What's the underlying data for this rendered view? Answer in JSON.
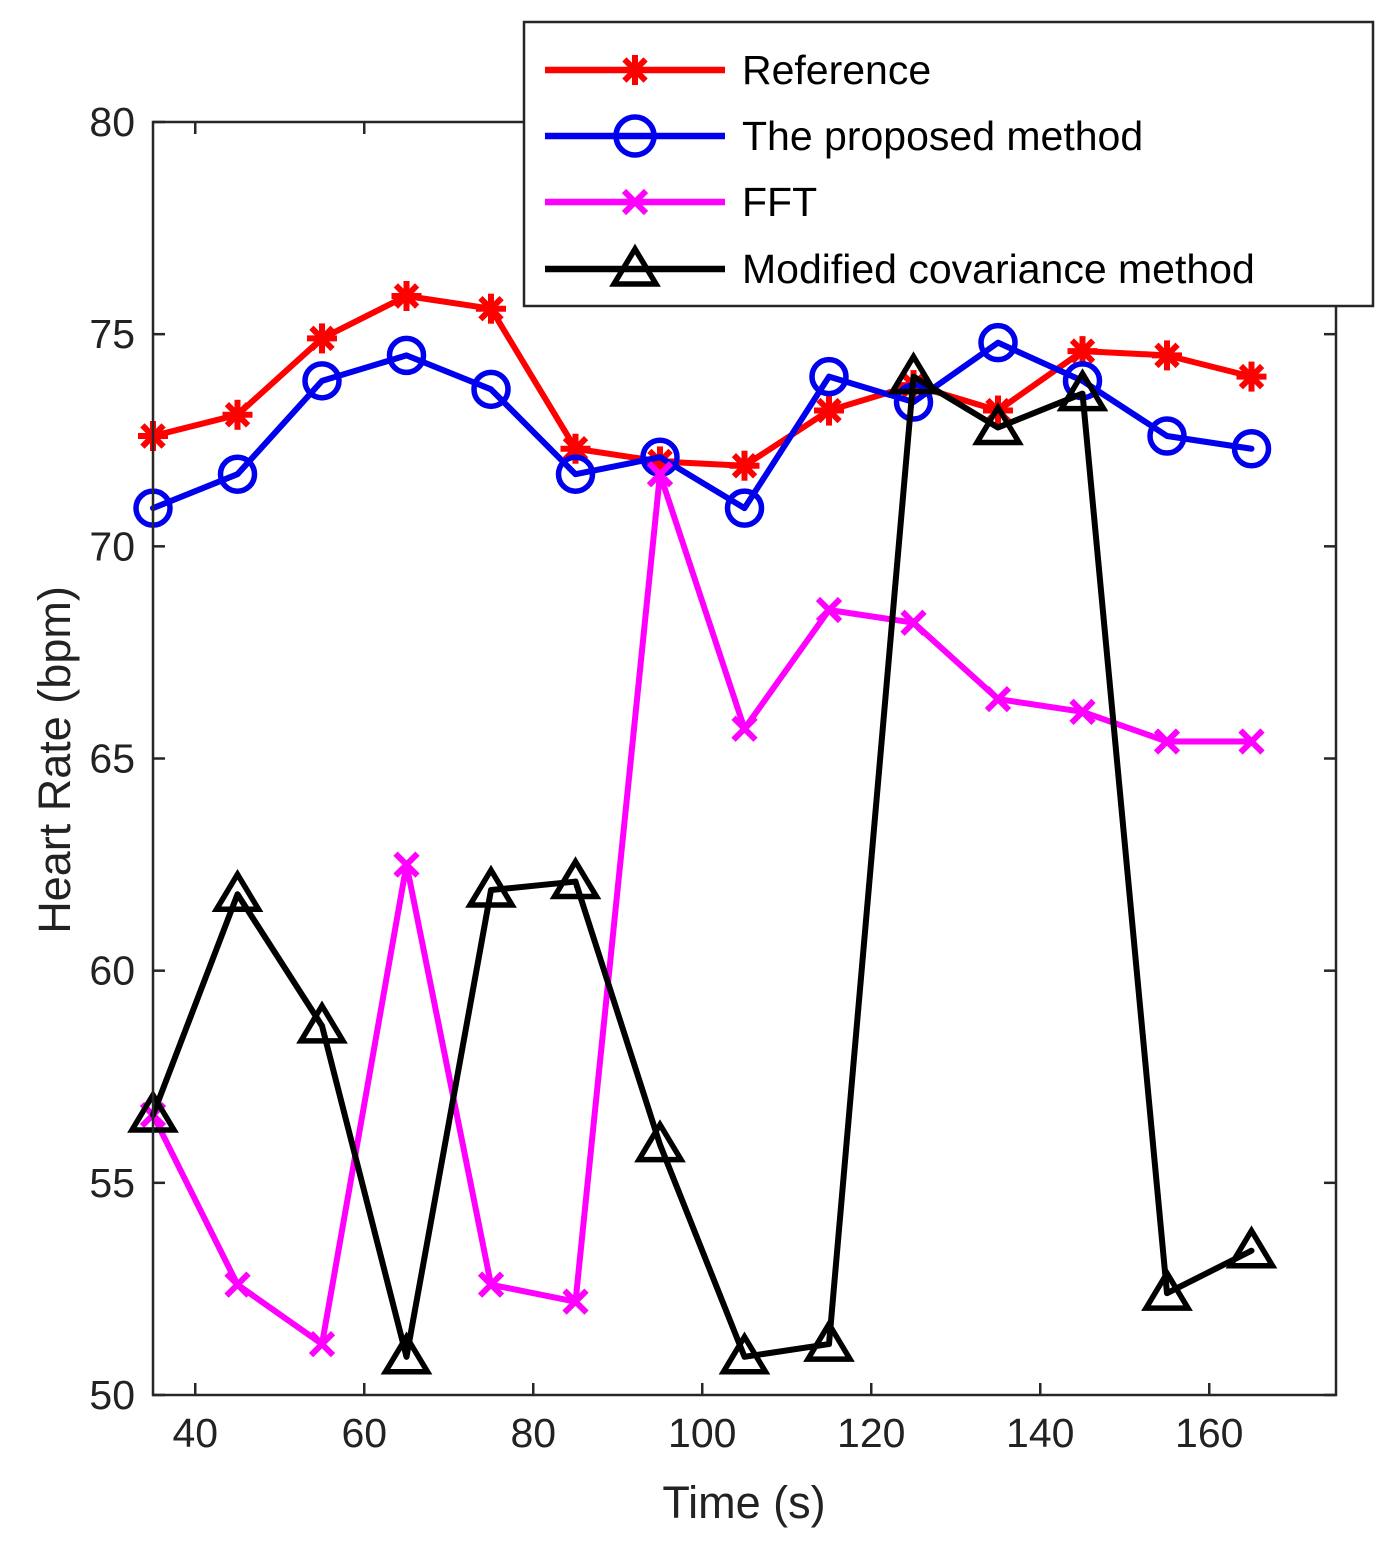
{
  "chart_data": {
    "type": "line",
    "xlabel": "Time (s)",
    "ylabel": "Heart Rate (bpm)",
    "xlim": [
      35,
      175
    ],
    "ylim": [
      50,
      80
    ],
    "xticks": [
      40,
      60,
      80,
      100,
      120,
      140,
      160
    ],
    "yticks": [
      50,
      55,
      60,
      65,
      70,
      75,
      80
    ],
    "grid": false,
    "legend_position": "top-right",
    "x": [
      35,
      45,
      55,
      65,
      75,
      85,
      95,
      105,
      115,
      125,
      135,
      145,
      155,
      165
    ],
    "series": [
      {
        "name": "Reference",
        "color": "#ff0000",
        "marker": "asterisk",
        "values": [
          72.6,
          73.1,
          74.9,
          75.9,
          75.6,
          72.3,
          72.0,
          71.9,
          73.2,
          73.8,
          73.2,
          74.6,
          74.5,
          74.0
        ]
      },
      {
        "name": "The proposed method",
        "color": "#0000ee",
        "marker": "circle",
        "values": [
          70.9,
          71.7,
          73.9,
          74.5,
          73.7,
          71.7,
          72.1,
          70.9,
          74.0,
          73.4,
          74.8,
          73.9,
          72.6,
          72.3
        ]
      },
      {
        "name": "FFT",
        "color": "#ff00ff",
        "marker": "cross",
        "values": [
          56.6,
          52.6,
          51.2,
          62.5,
          52.6,
          52.2,
          71.7,
          65.7,
          68.5,
          68.2,
          66.4,
          66.1,
          65.4,
          65.4
        ]
      },
      {
        "name": "Modified covariance method",
        "color": "#000000",
        "marker": "triangle",
        "values": [
          56.6,
          61.8,
          58.7,
          50.9,
          61.9,
          62.1,
          55.9,
          50.9,
          51.2,
          74.0,
          72.8,
          73.6,
          52.4,
          53.4
        ]
      }
    ]
  }
}
